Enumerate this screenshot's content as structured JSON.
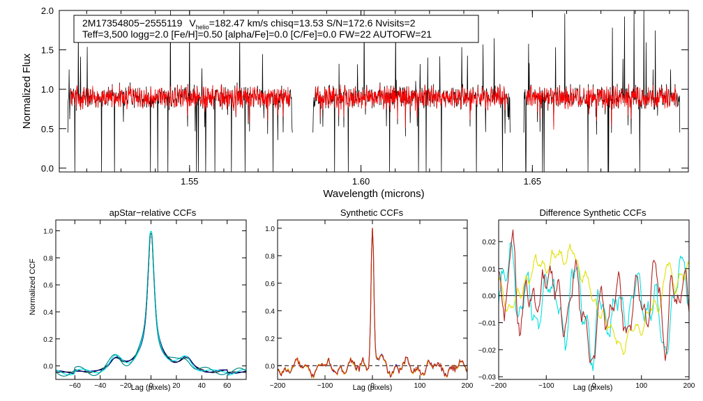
{
  "info_box": {
    "line1_star": "2M17354805−2555119",
    "line1_vhelio_v": "V",
    "line1_vhelio_sub": "helio",
    "line1_vhelio_rest": "=182.47 km/s  chisq=13.53  S/N=172.6  Nvisits=2",
    "line2": "Teff=3,500 logg=2.0 [Fe/H]=0.50 [alpha/Fe]=0.0 [C/Fe]=0.0 FW=22 AUTOFW=21"
  },
  "colors": {
    "observed": "#000000",
    "model": "#ff0000",
    "ccf_black": "#000000",
    "ccf_navy": "#000080",
    "ccf_cyan": "#00e5e5",
    "ccf_teal": "#008b8b",
    "synth_blue": "#1010c0",
    "synth_yellow": "#e0e000",
    "synth_orange": "#ff8c00",
    "synth_darkred": "#b22222",
    "diff_cyan": "#00e0e0",
    "diff_yellow": "#e0e000",
    "diff_red": "#b22222"
  },
  "chart_data": [
    {
      "id": "spectrum",
      "type": "line",
      "title": "",
      "xlabel": "Wavelength (microns)",
      "ylabel": "Normalized Flux",
      "xlim": [
        1.512,
        1.6955
      ],
      "ylim": [
        -0.05,
        2.0
      ],
      "xticks": [
        1.55,
        1.6,
        1.65
      ],
      "xticklabels": [
        "1.55",
        "1.60",
        "1.65"
      ],
      "yticks": [
        0.0,
        0.5,
        1.0,
        1.5,
        2.0
      ],
      "yticklabels": [
        "0.0",
        "0.5",
        "1.0",
        "1.5",
        "2.0"
      ],
      "continuum": 0.9,
      "chips": [
        [
          1.5145,
          1.58
        ],
        [
          1.586,
          1.6435
        ],
        [
          1.6475,
          1.693
        ]
      ],
      "series": [
        {
          "name": "observed",
          "color_key": "observed"
        },
        {
          "name": "model",
          "color_key": "model"
        }
      ]
    },
    {
      "id": "apstar_ccf",
      "type": "line",
      "title": "apStar−relative CCFs",
      "xlabel": "Lag (pixels)",
      "ylabel": "Normalized CCF",
      "xlim": [
        -75,
        75
      ],
      "ylim": [
        -0.1,
        1.08
      ],
      "xticks": [
        -60,
        -40,
        -20,
        0,
        20,
        40,
        60
      ],
      "xticklabels": [
        "−60",
        "−40",
        "−20",
        "0",
        "20",
        "40",
        "60"
      ],
      "yticks": [
        0.0,
        0.2,
        0.4,
        0.6,
        0.8,
        1.0
      ],
      "yticklabels": [
        "0.0",
        "0.2",
        "0.4",
        "0.6",
        "0.8",
        "1.0"
      ],
      "series": [
        {
          "name": "visit 1",
          "color_key": "ccf_black"
        },
        {
          "name": "visit 2",
          "color_key": "ccf_navy"
        },
        {
          "name": "visit 3",
          "color_key": "ccf_cyan"
        },
        {
          "name": "visit 4",
          "color_key": "ccf_teal"
        }
      ]
    },
    {
      "id": "synthetic_ccf",
      "type": "line",
      "title": "Synthetic CCFs",
      "xlabel": "Lag (pixels)",
      "ylabel": "",
      "xlim": [
        -200,
        200
      ],
      "ylim": [
        -0.1,
        1.06
      ],
      "xticks": [
        -200,
        -100,
        0,
        100,
        200
      ],
      "xticklabels": [
        "−200",
        "−100",
        "0",
        "100",
        "200"
      ],
      "yticks": [
        0.0,
        0.2,
        0.4,
        0.6,
        0.8,
        1.0
      ],
      "yticklabels": [
        "0.0",
        "0.2",
        "0.4",
        "0.6",
        "0.8",
        "1.0"
      ],
      "baseline": 0.0,
      "series": [
        {
          "name": "ccf a",
          "color_key": "synth_blue"
        },
        {
          "name": "ccf b",
          "color_key": "synth_yellow"
        },
        {
          "name": "ccf c",
          "color_key": "synth_orange"
        },
        {
          "name": "ccf d",
          "color_key": "synth_darkred"
        }
      ]
    },
    {
      "id": "diff_synthetic_ccf",
      "type": "line",
      "title": "Difference Synthetic CCFs",
      "xlabel": "Lag (pixels)",
      "ylabel": "",
      "xlim": [
        -200,
        200
      ],
      "ylim": [
        -0.031,
        0.028
      ],
      "xticks": [
        -200,
        -100,
        0,
        100,
        200
      ],
      "xticklabels": [
        "−200",
        "−100",
        "0",
        "100",
        "200"
      ],
      "yticks": [
        0.02,
        0.01,
        0.0,
        -0.01,
        -0.02,
        -0.03
      ],
      "yticklabels": [
        "0.02",
        "0.01",
        "0.00",
        "−0.01",
        "−0.02",
        "−0.03"
      ],
      "zero_line": 0.0,
      "series": [
        {
          "name": "diff cyan",
          "color_key": "diff_cyan"
        },
        {
          "name": "diff yellow",
          "color_key": "diff_yellow"
        },
        {
          "name": "diff red",
          "color_key": "diff_red"
        }
      ]
    }
  ]
}
